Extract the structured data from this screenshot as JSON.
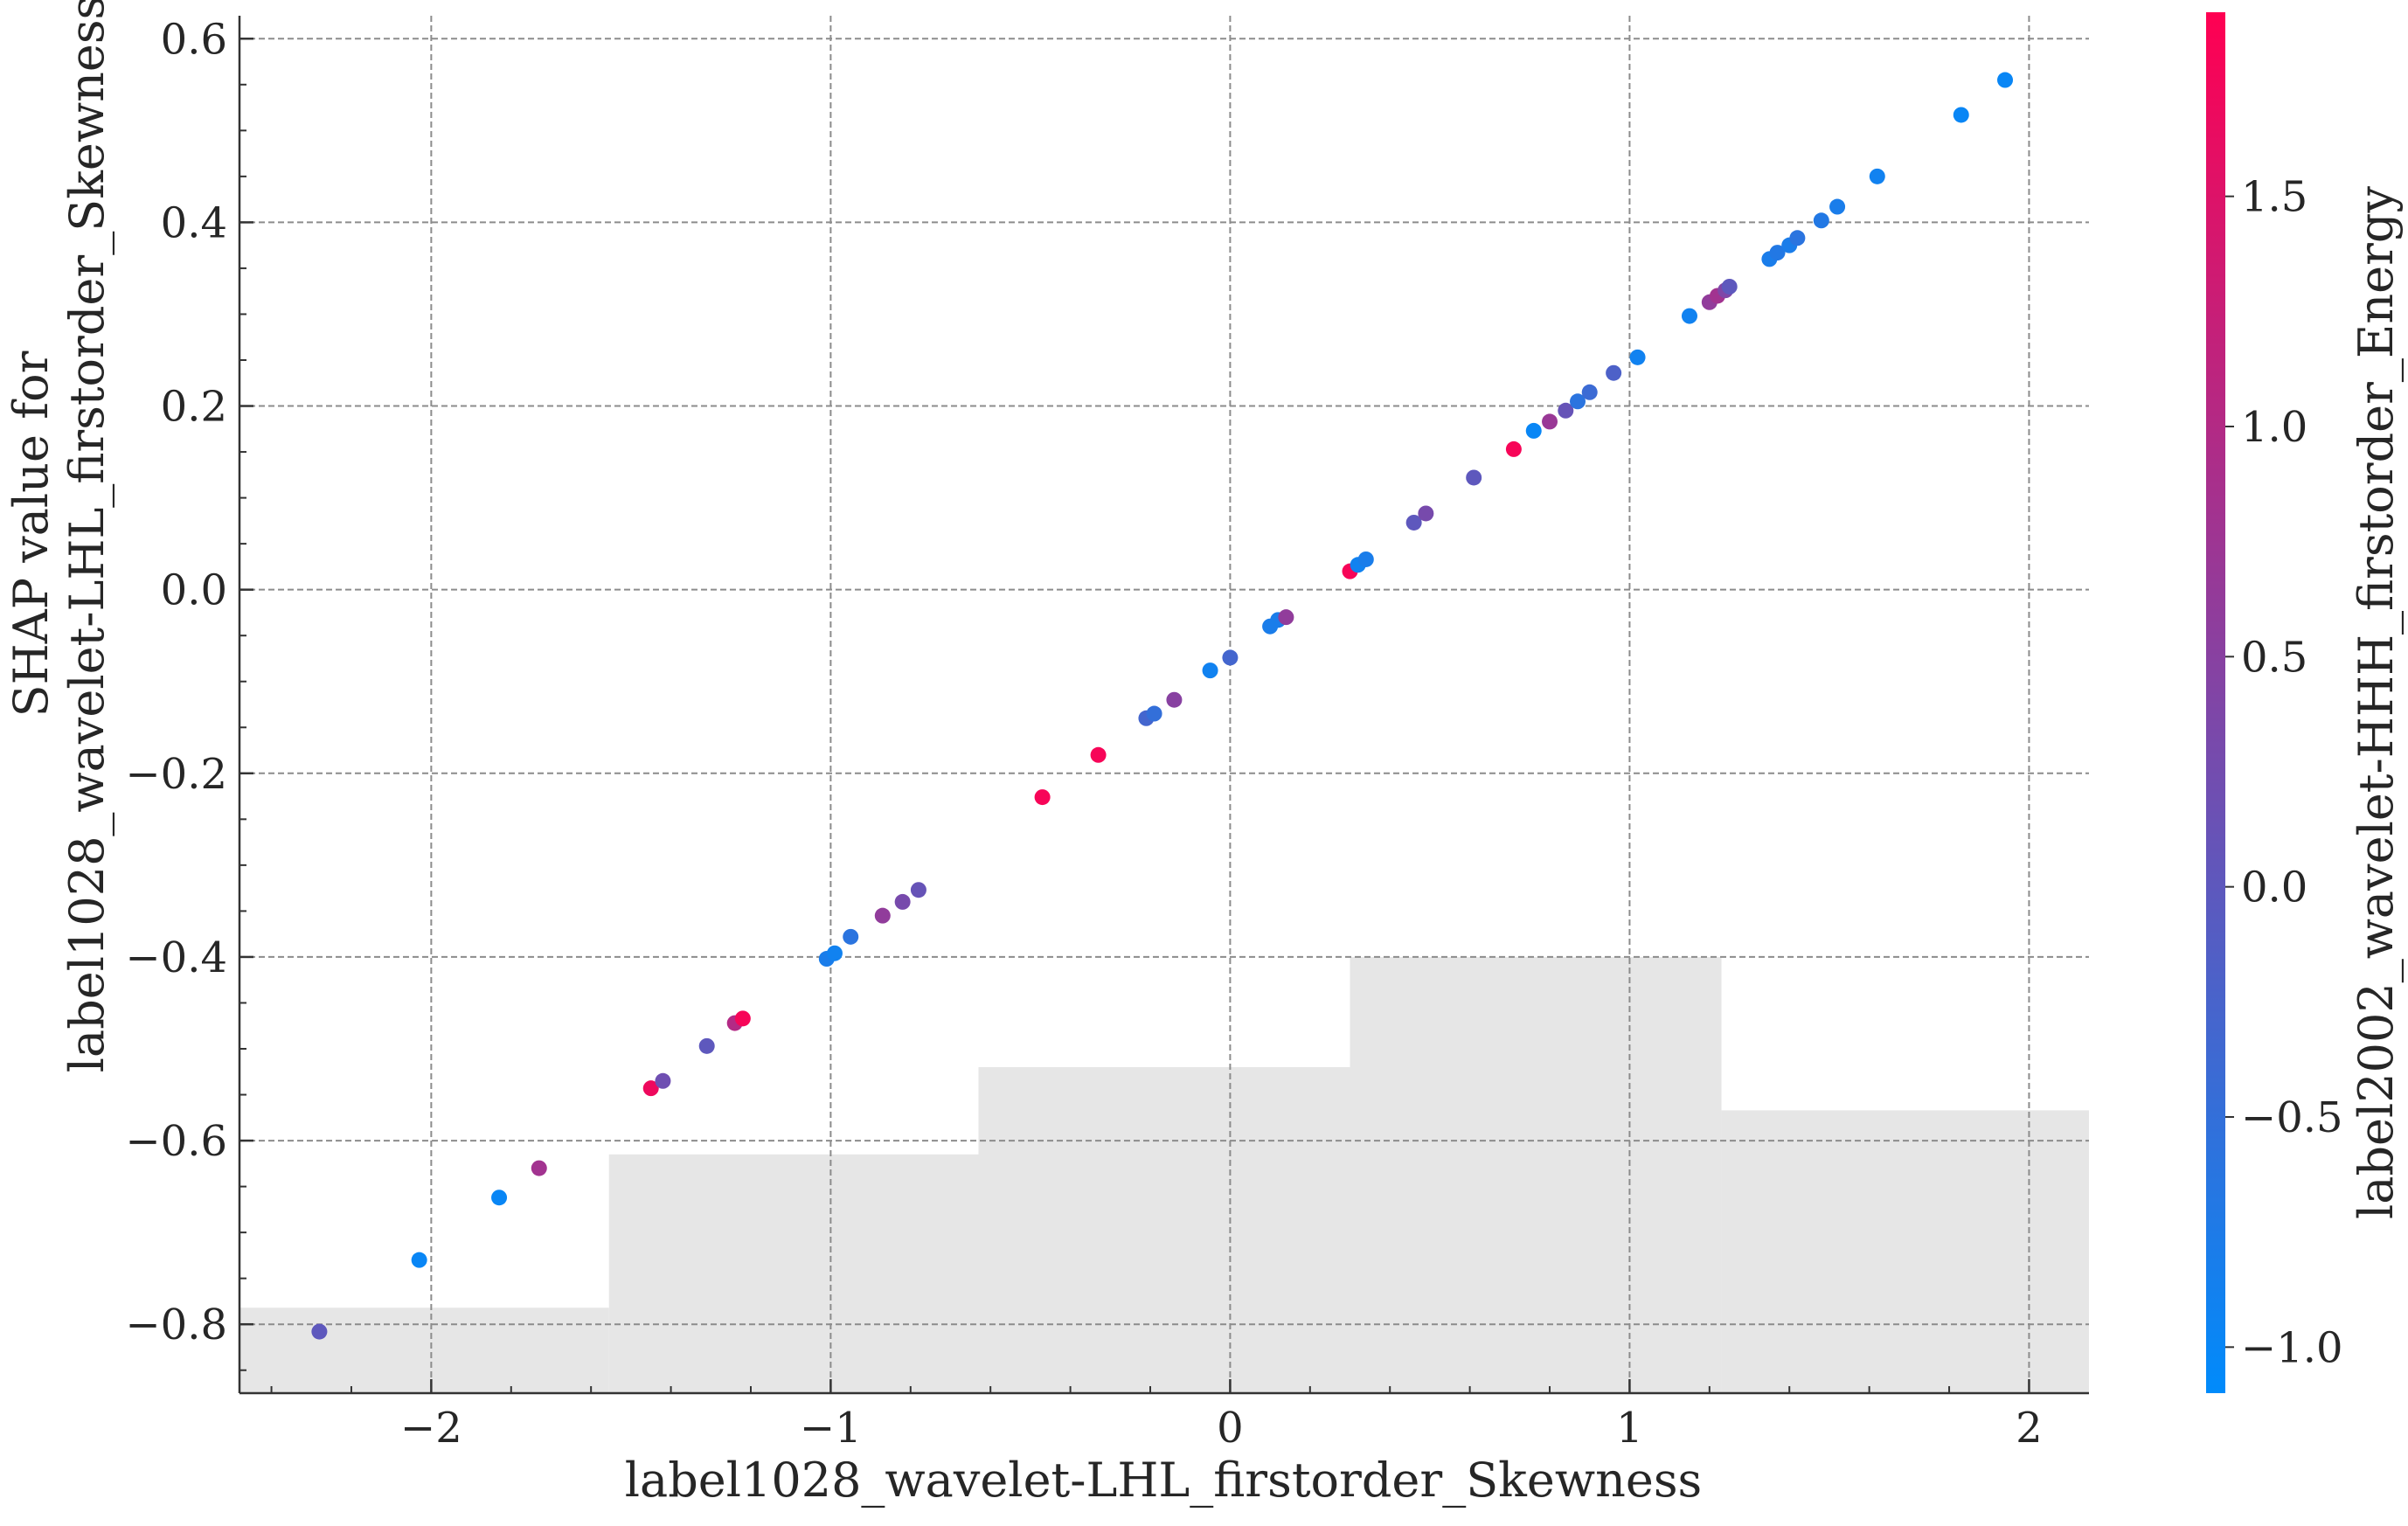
{
  "chart_data": {
    "type": "scatter",
    "title": "",
    "xlabel": "label1028_wavelet-LHL_firstorder_Skewness",
    "ylabel_lines": [
      "SHAP value for",
      "label1028_wavelet-LHL_firstorder_Skewness"
    ],
    "colorbar_label": "label2002_wavelet-HHH_firstorder_Energy",
    "xlim": [
      -2.48,
      2.15
    ],
    "ylim": [
      -0.875,
      0.625
    ],
    "xticks": [
      -2,
      -1,
      0,
      1,
      2
    ],
    "xtick_labels": [
      "−2",
      "−1",
      "0",
      "1",
      "2"
    ],
    "yticks": [
      -0.8,
      -0.6,
      -0.4,
      -0.2,
      0.0,
      0.2,
      0.4,
      0.6
    ],
    "ytick_labels": [
      "−0.8",
      "−0.6",
      "−0.4",
      "−0.2",
      "0.0",
      "0.2",
      "0.4",
      "0.6"
    ],
    "colorbar_range": [
      -1.1,
      1.9
    ],
    "colorbar_ticks": [
      -1.0,
      -0.5,
      0.0,
      0.5,
      1.0,
      1.5
    ],
    "colorbar_tick_labels": [
      "−1.0",
      "−0.5",
      "0.0",
      "0.5",
      "1.0",
      "1.5"
    ],
    "colormap": [
      "#008bfb",
      "#ff0052"
    ],
    "grid": true,
    "histogram_color": "#e6e6e6",
    "histogram": {
      "edges": [
        -2.48,
        -1.555,
        -0.63,
        0.3,
        1.23,
        2.15
      ],
      "tops": [
        -0.782,
        -0.615,
        -0.52,
        -0.4,
        -0.567
      ]
    },
    "points": [
      {
        "x": -2.28,
        "y": -0.808,
        "c": 0.0
      },
      {
        "x": -2.03,
        "y": -0.73,
        "c": -1.0
      },
      {
        "x": -1.83,
        "y": -0.662,
        "c": -1.0
      },
      {
        "x": -1.73,
        "y": -0.63,
        "c": 0.8
      },
      {
        "x": -1.45,
        "y": -0.543,
        "c": 1.7
      },
      {
        "x": -1.42,
        "y": -0.535,
        "c": 0.2
      },
      {
        "x": -1.31,
        "y": -0.497,
        "c": 0.0
      },
      {
        "x": -1.24,
        "y": -0.472,
        "c": 1.0
      },
      {
        "x": -1.22,
        "y": -0.467,
        "c": 1.8
      },
      {
        "x": -1.01,
        "y": -0.402,
        "c": -0.8
      },
      {
        "x": -0.99,
        "y": -0.396,
        "c": -0.9
      },
      {
        "x": -0.95,
        "y": -0.378,
        "c": -0.6
      },
      {
        "x": -0.87,
        "y": -0.355,
        "c": 0.6
      },
      {
        "x": -0.82,
        "y": -0.34,
        "c": 0.3
      },
      {
        "x": -0.78,
        "y": -0.327,
        "c": 0.1
      },
      {
        "x": -0.47,
        "y": -0.226,
        "c": 1.8
      },
      {
        "x": -0.33,
        "y": -0.18,
        "c": 1.8
      },
      {
        "x": -0.21,
        "y": -0.14,
        "c": -0.3
      },
      {
        "x": -0.19,
        "y": -0.135,
        "c": -0.5
      },
      {
        "x": -0.14,
        "y": -0.12,
        "c": 0.5
      },
      {
        "x": -0.05,
        "y": -0.088,
        "c": -0.9
      },
      {
        "x": 0.0,
        "y": -0.074,
        "c": -0.3
      },
      {
        "x": 0.1,
        "y": -0.04,
        "c": -0.8
      },
      {
        "x": 0.12,
        "y": -0.033,
        "c": -0.8
      },
      {
        "x": 0.14,
        "y": -0.03,
        "c": 0.6
      },
      {
        "x": 0.3,
        "y": 0.02,
        "c": 1.8
      },
      {
        "x": 0.32,
        "y": 0.027,
        "c": -0.9
      },
      {
        "x": 0.34,
        "y": 0.033,
        "c": -0.8
      },
      {
        "x": 0.46,
        "y": 0.073,
        "c": 0.0
      },
      {
        "x": 0.49,
        "y": 0.083,
        "c": 0.3
      },
      {
        "x": 0.61,
        "y": 0.122,
        "c": 0.0
      },
      {
        "x": 0.71,
        "y": 0.153,
        "c": 1.8
      },
      {
        "x": 0.76,
        "y": 0.173,
        "c": -1.0
      },
      {
        "x": 0.8,
        "y": 0.183,
        "c": 0.7
      },
      {
        "x": 0.84,
        "y": 0.195,
        "c": 0.1
      },
      {
        "x": 0.87,
        "y": 0.205,
        "c": -0.6
      },
      {
        "x": 0.9,
        "y": 0.215,
        "c": -0.4
      },
      {
        "x": 0.96,
        "y": 0.236,
        "c": -0.2
      },
      {
        "x": 1.02,
        "y": 0.253,
        "c": -0.9
      },
      {
        "x": 1.15,
        "y": 0.298,
        "c": -0.9
      },
      {
        "x": 1.2,
        "y": 0.313,
        "c": 0.6
      },
      {
        "x": 1.22,
        "y": 0.32,
        "c": 0.8
      },
      {
        "x": 1.24,
        "y": 0.326,
        "c": 0.4
      },
      {
        "x": 1.25,
        "y": 0.33,
        "c": 0.0
      },
      {
        "x": 1.35,
        "y": 0.36,
        "c": -0.8
      },
      {
        "x": 1.37,
        "y": 0.367,
        "c": -0.7
      },
      {
        "x": 1.4,
        "y": 0.375,
        "c": -0.8
      },
      {
        "x": 1.42,
        "y": 0.383,
        "c": -0.6
      },
      {
        "x": 1.48,
        "y": 0.402,
        "c": -0.7
      },
      {
        "x": 1.52,
        "y": 0.417,
        "c": -0.8
      },
      {
        "x": 1.62,
        "y": 0.45,
        "c": -0.9
      },
      {
        "x": 1.83,
        "y": 0.517,
        "c": -1.0
      },
      {
        "x": 1.94,
        "y": 0.555,
        "c": -1.0
      }
    ]
  }
}
